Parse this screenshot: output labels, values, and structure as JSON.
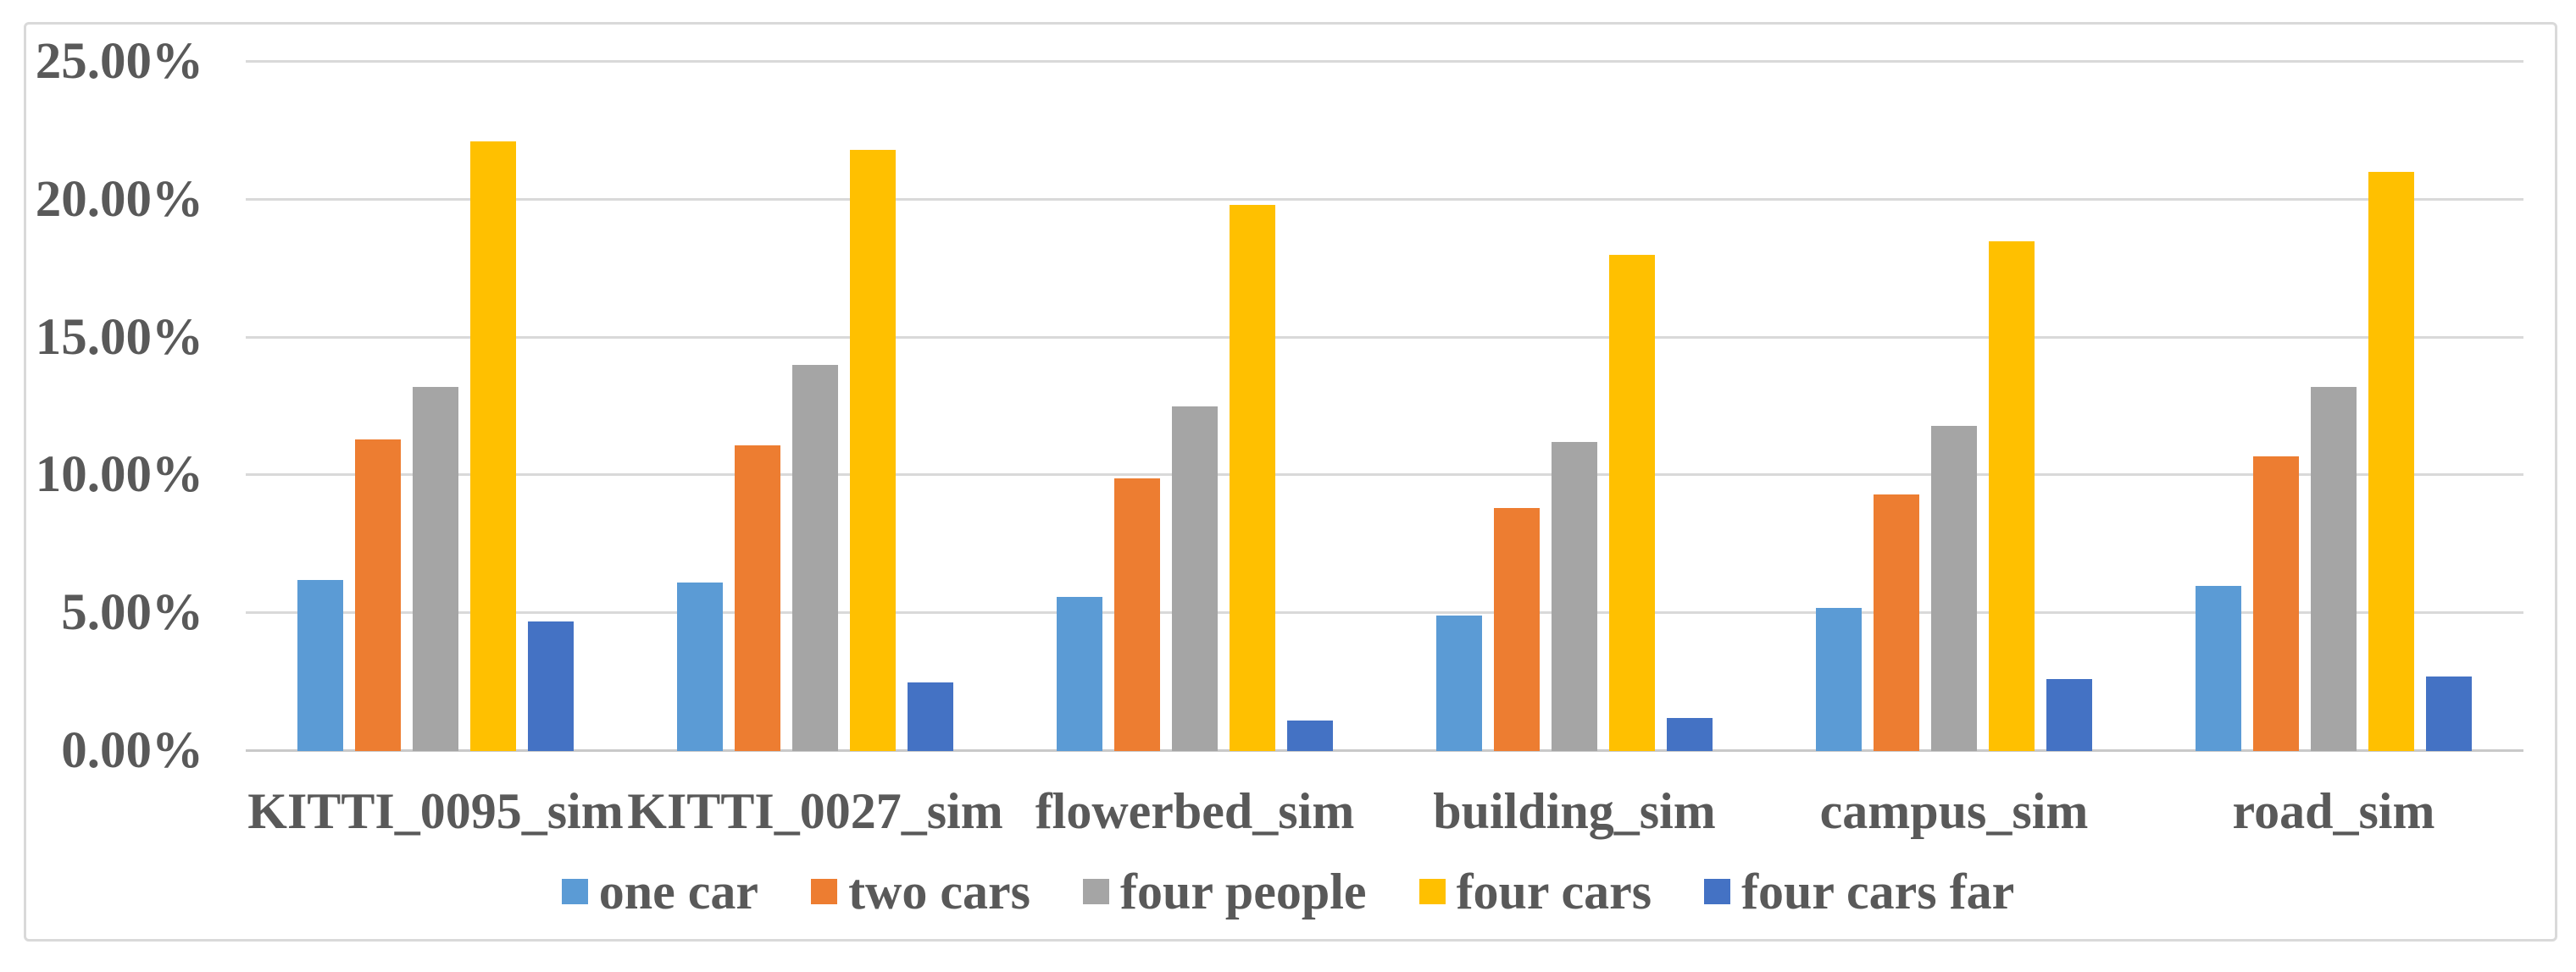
{
  "chart_data": {
    "type": "bar",
    "title": "",
    "xlabel": "",
    "ylabel": "",
    "ylim": [
      0,
      25
    ],
    "ytick_step": 5,
    "ytick_labels": [
      "0.00%",
      "5.00%",
      "10.00%",
      "15.00%",
      "20.00%",
      "25.00%"
    ],
    "grid": true,
    "legend_position": "bottom",
    "categories": [
      "KITTI_0095_sim",
      "KITTI_0027_sim",
      "flowerbed_sim",
      "building_sim",
      "campus_sim",
      "road_sim"
    ],
    "series": [
      {
        "name": "one car",
        "color": "#5B9BD5",
        "values": [
          6.2,
          6.1,
          5.6,
          4.9,
          5.2,
          6.0
        ]
      },
      {
        "name": "two cars",
        "color": "#ED7D31",
        "values": [
          11.3,
          11.1,
          9.9,
          8.8,
          9.3,
          10.7
        ]
      },
      {
        "name": "four people",
        "color": "#A5A5A5",
        "values": [
          13.2,
          14.0,
          12.5,
          11.2,
          11.8,
          13.2
        ]
      },
      {
        "name": "four cars",
        "color": "#FFC000",
        "values": [
          22.1,
          21.8,
          19.8,
          18.0,
          18.5,
          21.0
        ]
      },
      {
        "name": "four cars far",
        "color": "#4472C4",
        "values": [
          4.7,
          2.5,
          1.1,
          1.2,
          2.6,
          2.7
        ]
      }
    ]
  },
  "colors": {
    "text": "#595959",
    "gridline": "#D9D9D9",
    "frame_border": "#D9D9D9",
    "background": "#FFFFFF"
  }
}
